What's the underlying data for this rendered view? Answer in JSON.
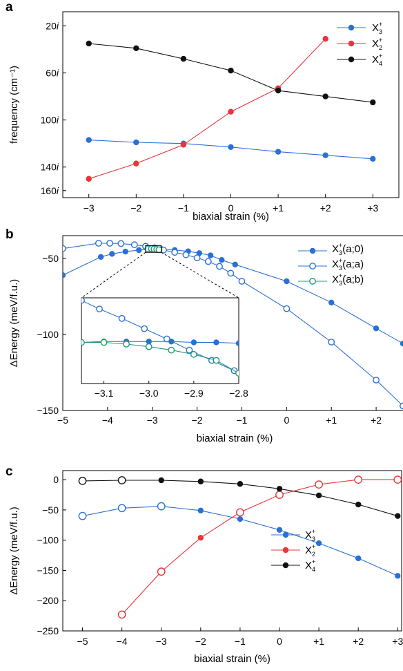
{
  "chart_data": [
    {
      "panel": "a",
      "type": "line",
      "xlabel": "biaxial strain (%)",
      "ylabel": "frequency (cm⁻¹)",
      "x": [
        -3,
        -2,
        -1,
        0,
        1,
        2,
        3
      ],
      "x_tick_labels": [
        "−3",
        "−2",
        "−1",
        "0",
        "+1",
        "+2",
        "+3"
      ],
      "ylim": [
        160,
        8
      ],
      "y_inverted": true,
      "y_ticks": [
        20,
        60,
        100,
        140,
        160
      ],
      "y_tick_labels": [
        "20",
        "60",
        "100",
        "140",
        "160"
      ],
      "y_tick_suffix": "i",
      "legend_position": "top-right",
      "grid": false,
      "series": [
        {
          "label": "X",
          "sub": "3",
          "sup": "+",
          "color": "#2b6fd6",
          "values": [
            117,
            119,
            120,
            123,
            127,
            130,
            133
          ]
        },
        {
          "label": "X",
          "sub": "2",
          "sup": "+",
          "color": "#e8343a",
          "values": [
            150,
            137,
            121,
            93,
            73,
            31,
            null
          ]
        },
        {
          "label": "X",
          "sub": "4",
          "sup": "+",
          "color": "#111111",
          "values": [
            35,
            39,
            48,
            58,
            75,
            80,
            85
          ]
        }
      ]
    },
    {
      "panel": "b",
      "type": "line",
      "xlabel": "biaxial strain (%)",
      "ylabel": "ΔEnergy (meV/f.u.)",
      "xlim": [
        -5,
        2.6
      ],
      "ylim": [
        -150,
        -35
      ],
      "x_ticks": [
        -5,
        -4,
        -3,
        -2,
        -1,
        0,
        1,
        2
      ],
      "x_tick_labels": [
        "−5",
        "−4",
        "−3",
        "−2",
        "−1",
        "0",
        "+1",
        "+2"
      ],
      "y_ticks": [
        -50,
        -100,
        -150
      ],
      "y_tick_labels": [
        "−50",
        "−100",
        "−150"
      ],
      "legend_position": "top-right",
      "grid": false,
      "series": [
        {
          "label": "X",
          "sub": "3",
          "sup": "+",
          "suffix": "(a;0)",
          "color": "#2b6fd6",
          "marker": "filled",
          "x": [
            -5,
            -4.15,
            -3.9,
            -3.6,
            -3.3,
            -3.05,
            -2.95,
            -2.8,
            -2.5,
            -2.2,
            -1.95,
            -1.7,
            -1.45,
            -1.15,
            0,
            1,
            2,
            2.6
          ],
          "values": [
            -61,
            -49,
            -47,
            -45.5,
            -44.5,
            -43.8,
            -43.7,
            -43.8,
            -44.5,
            -45.3,
            -46.5,
            -48,
            -51,
            -54,
            -65,
            -79,
            -96,
            -106
          ]
        },
        {
          "label": "X",
          "sub": "3",
          "sup": "+",
          "suffix": "(a;a)",
          "color": "#2b6fd6",
          "marker": "open",
          "x": [
            -5,
            -4.2,
            -3.95,
            -3.7,
            -3.4,
            -3.15,
            -2.95,
            -2.75,
            -2.5,
            -2.25,
            -2.0,
            -1.75,
            -1.5,
            -1.25,
            -1.0,
            0,
            1,
            2,
            2.6
          ],
          "values": [
            -43.5,
            -40,
            -40,
            -40.2,
            -41,
            -42,
            -43,
            -44.5,
            -46,
            -47.6,
            -49.6,
            -52,
            -55.2,
            -59.7,
            -65,
            -83,
            -105,
            -130,
            -147
          ]
        },
        {
          "label": "X",
          "sub": "3",
          "sup": "+",
          "suffix": "(a;b)",
          "color": "#1a9a78",
          "marker": "open",
          "x": [
            -3.1,
            -3.02,
            -2.96,
            -2.9,
            -2.85
          ],
          "values": [
            -43.7,
            -43.6,
            -43.8,
            -44.0,
            -44.3
          ]
        }
      ],
      "inset": {
        "zoom_box": {
          "x": [
            -3.15,
            -2.8
          ],
          "y": [
            -46,
            -41.5
          ]
        },
        "xlim": [
          -3.15,
          -2.8
        ],
        "x_ticks": [
          -3.1,
          -3.0,
          -2.9,
          -2.8
        ],
        "x_tick_labels": [
          "−3.1",
          "−3.0",
          "−2.9",
          "−2.8"
        ],
        "series": [
          {
            "color": "#2b6fd6",
            "marker": "filled",
            "x": [
              -3.15,
              -3.1,
              -3.05,
              -3.0,
              -2.95,
              -2.9,
              -2.85,
              -2.8
            ],
            "values": [
              0.48,
              0.49,
              0.49,
              0.49,
              0.49,
              0.48,
              0.48,
              0.47
            ]
          },
          {
            "color": "#2b6fd6",
            "marker": "open",
            "x": [
              -3.15,
              -3.11,
              -3.06,
              -3.01,
              -2.96,
              -2.91,
              -2.86,
              -2.81
            ],
            "values": [
              0.97,
              0.87,
              0.76,
              0.64,
              0.52,
              0.39,
              0.27,
              0.15
            ]
          },
          {
            "color": "#1a9a78",
            "marker": "open",
            "x": [
              -3.15,
              -3.1,
              -3.05,
              -3.0,
              -2.95,
              -2.9,
              -2.85,
              -2.8
            ],
            "values": [
              0.48,
              0.48,
              0.46,
              0.43,
              0.39,
              0.34,
              0.27,
              0.12
            ]
          }
        ]
      }
    },
    {
      "panel": "c",
      "type": "line",
      "xlabel": "biaxial strain (%)",
      "ylabel": "ΔEnergy (meV/f.u.)",
      "xlim": [
        -5.5,
        3.1
      ],
      "ylim": [
        -250,
        15
      ],
      "x_ticks": [
        -5,
        -4,
        -3,
        -2,
        -1,
        0,
        1,
        2,
        3
      ],
      "x_tick_labels": [
        "−5",
        "−4",
        "−3",
        "−2",
        "−1",
        "0",
        "+1",
        "+2",
        "+3"
      ],
      "y_ticks": [
        0,
        -50,
        -100,
        -150,
        -200,
        -250
      ],
      "y_tick_labels": [
        "0",
        "−50",
        "−100",
        "−150",
        "−200",
        "−250"
      ],
      "legend_position": "lower-right",
      "grid": false,
      "series": [
        {
          "label": "X",
          "sub": "3",
          "sup": "+",
          "color": "#2b6fd6",
          "x": [
            -5,
            -4,
            -3,
            -2,
            -1,
            0,
            1,
            2,
            3
          ],
          "values": [
            -60,
            -47,
            -44,
            -51,
            -65,
            -83,
            -105,
            -130,
            -159
          ],
          "open": [
            true,
            true,
            true,
            false,
            false,
            false,
            false,
            false,
            false
          ]
        },
        {
          "label": "X",
          "sub": "2",
          "sup": "+",
          "color": "#e8343a",
          "x": [
            -4,
            -3,
            -2,
            -1,
            0,
            1,
            2,
            3
          ],
          "values": [
            -223,
            -152,
            -96,
            -54,
            -25,
            -8,
            0,
            0
          ],
          "open": [
            true,
            true,
            false,
            true,
            true,
            true,
            true,
            true
          ]
        },
        {
          "label": "X",
          "sub": "4",
          "sup": "+",
          "color": "#111111",
          "x": [
            -5,
            -4,
            -3,
            -2,
            -1,
            0,
            1,
            2,
            3
          ],
          "values": [
            -2,
            -1,
            -1,
            -3,
            -7,
            -15,
            -26,
            -41,
            -60
          ],
          "open": [
            true,
            true,
            false,
            false,
            false,
            false,
            false,
            false,
            false
          ]
        }
      ]
    }
  ]
}
